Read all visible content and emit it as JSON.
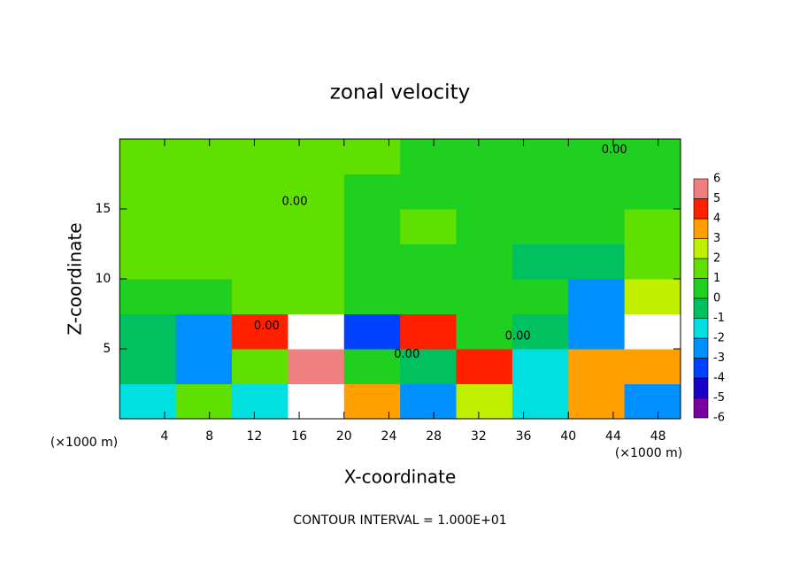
{
  "chart_data": {
    "type": "heatmap",
    "title": "zonal velocity",
    "x_label": "X-coordinate",
    "y_label": "Z-coordinate",
    "x_unit": "(×1000 m)",
    "y_unit": "(×1000 m)",
    "footer": "CONTOUR INTERVAL = 1.000E+01",
    "xlim": [
      0,
      50
    ],
    "ylim": [
      0,
      20
    ],
    "xticks": [
      4,
      8,
      12,
      16,
      20,
      24,
      28,
      32,
      36,
      40,
      44,
      48
    ],
    "yticks": [
      5,
      10,
      15
    ],
    "x": [
      2.5,
      7.5,
      12.5,
      17.5,
      22.5,
      27.5,
      32.5,
      37.5,
      42.5,
      47.5
    ],
    "y": [
      1.25,
      3.75,
      6.25,
      8.75,
      11.25,
      13.75,
      16.25,
      18.75
    ],
    "z": [
      [
        -2,
        1,
        -2,
        6,
        3,
        -3,
        2,
        -2,
        3,
        -3
      ],
      [
        -0.5,
        -3,
        1,
        5,
        0,
        -1,
        4,
        -2,
        3,
        3
      ],
      [
        -1,
        -3,
        4,
        7,
        -4,
        4,
        0.5,
        -1,
        -3,
        7
      ],
      [
        0.5,
        0.8,
        1,
        1.5,
        0.5,
        0.5,
        0.5,
        0,
        -3,
        2.5
      ],
      [
        1.5,
        1.5,
        1.5,
        1,
        0.5,
        0.5,
        0.5,
        -0.5,
        -1,
        1.5
      ],
      [
        1.5,
        1.5,
        1.5,
        1,
        0.5,
        1,
        0.5,
        0.2,
        0.5,
        1
      ],
      [
        1.5,
        1.5,
        1.5,
        1,
        0.5,
        0.5,
        0.5,
        0.5,
        0.5,
        0.5
      ],
      [
        1,
        1,
        1,
        1,
        1,
        0.5,
        0.5,
        0.5,
        0.5,
        0.5
      ]
    ],
    "colorbar": {
      "levels": [
        -6,
        -5,
        -4,
        -3,
        -2,
        -1,
        0,
        1,
        2,
        3,
        4,
        5,
        6
      ],
      "colors": [
        "#7a00a0",
        "#1a00c8",
        "#0040ff",
        "#0090ff",
        "#00e0e0",
        "#00c060",
        "#20d020",
        "#60e000",
        "#c0f000",
        "#ffa000",
        "#ff2000",
        "#f08080"
      ],
      "over_color": "#ffffff"
    },
    "annotations": [
      {
        "text": "0.00",
        "x": 15.6,
        "y": 15.5
      },
      {
        "text": "0.00",
        "x": 44.1,
        "y": 19.2
      },
      {
        "text": "0.00",
        "x": 13.1,
        "y": 6.6
      },
      {
        "text": "0.00",
        "x": 25.6,
        "y": 4.6
      },
      {
        "text": "0.00",
        "x": 35.5,
        "y": 5.9
      }
    ]
  }
}
